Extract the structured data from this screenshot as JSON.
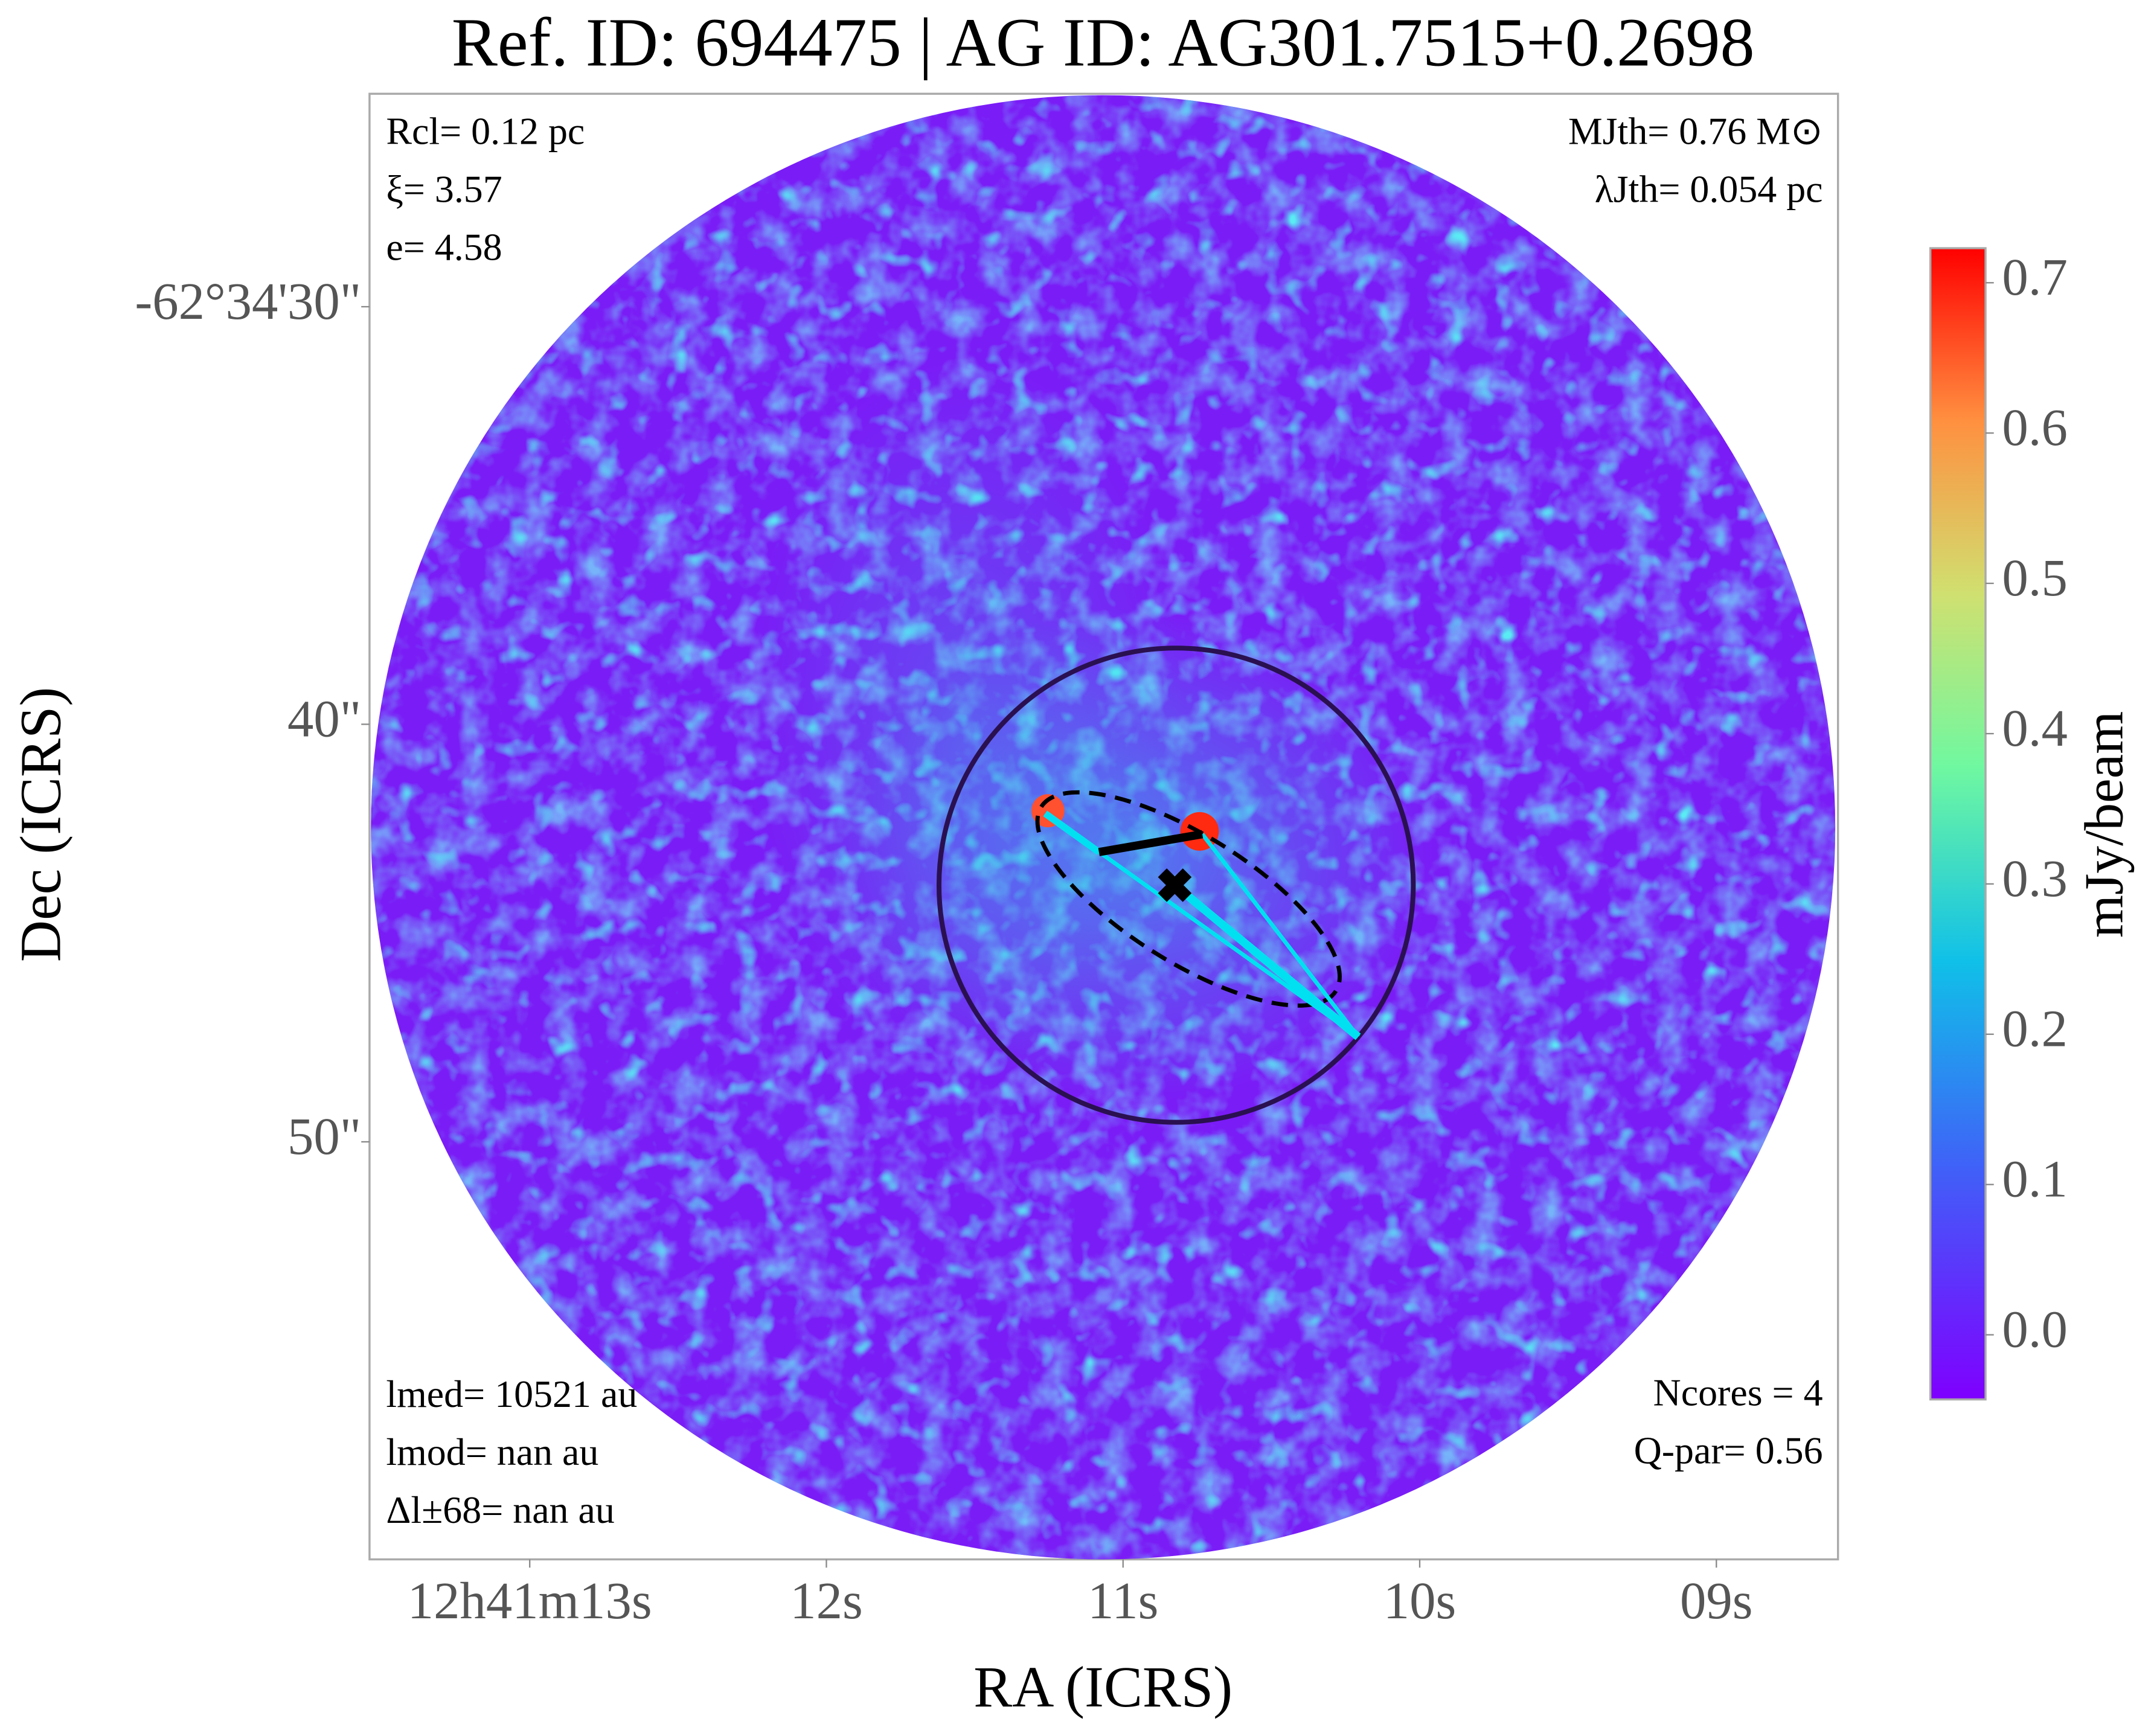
{
  "chart_data": {
    "type": "image",
    "title": "Ref. ID: 694475 | AG ID: AG301.7515+0.2698",
    "xlabel": "RA (ICRS)",
    "ylabel": "Dec (ICRS)",
    "xlim": [
      13.54,
      8.59
    ],
    "xticks": [
      {
        "value": 13,
        "label": "12h41m13s"
      },
      {
        "value": 12,
        "label": "12s"
      },
      {
        "value": 11,
        "label": "11s"
      },
      {
        "value": 10,
        "label": "10s"
      },
      {
        "value": 9,
        "label": "09s"
      }
    ],
    "ylim": [
      24.9,
      60
    ],
    "yticks": [
      {
        "value": 30,
        "label": "-62°34'30\""
      },
      {
        "value": 40,
        "label": "40\""
      },
      {
        "value": 50,
        "label": "50\""
      }
    ],
    "colorbar": {
      "label": "mJy/beam",
      "lim": [
        -0.043,
        0.723
      ],
      "ticks": [
        {
          "value": 0,
          "label": "0.0"
        },
        0.1,
        0.2,
        0.3,
        0.4,
        0.5,
        0.6,
        0.7
      ]
    },
    "annotations": {
      "top_left": [
        "Rcl= 0.12 pc",
        "ξ= 3.57",
        "e= 4.58"
      ],
      "top_right": [
        "MJth= 0.76 M⊙",
        "λJth= 0.054 pc"
      ],
      "bottom_left": [
        "lmed= 10521 au",
        "lmod= nan au",
        "Δl±68= nan au"
      ],
      "bottom_right": [
        "Ncores = 4",
        "Q-par= 0.56"
      ]
    }
  }
}
